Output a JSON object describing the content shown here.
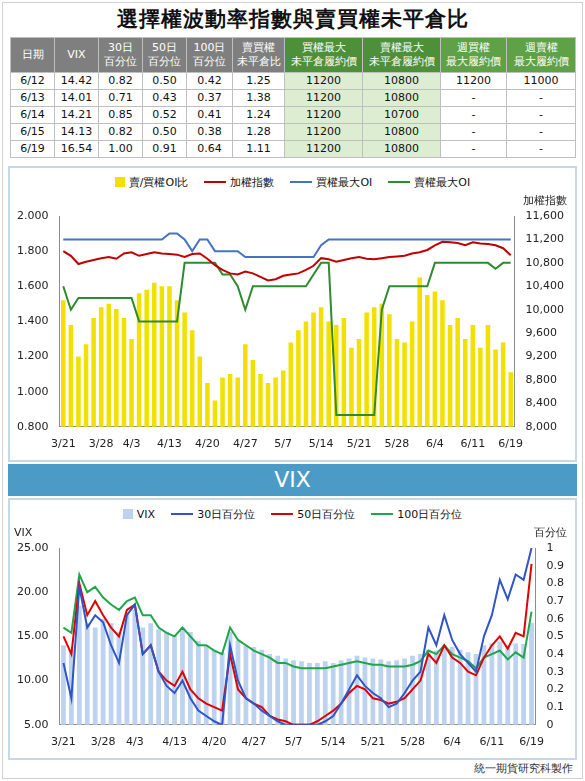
{
  "title": "選擇權波動率指數與賣買權未平倉比",
  "table": {
    "columns": [
      [
        "日期"
      ],
      [
        "VIX"
      ],
      [
        "30日",
        "百分位"
      ],
      [
        "50日",
        "百分位"
      ],
      [
        "100日",
        "百分位"
      ],
      [
        "賣買權",
        "未平倉比"
      ],
      [
        "買權最大",
        "未平倉履約價"
      ],
      [
        "賣權最大",
        "未平倉履約價"
      ],
      [
        "週買權",
        "最大履約價"
      ],
      [
        "週賣權",
        "最大履約價"
      ]
    ],
    "rows": [
      [
        "6/12",
        "14.42",
        "0.82",
        "0.50",
        "0.42",
        "1.25",
        "11200",
        "10800",
        "11200",
        "11000"
      ],
      [
        "6/13",
        "14.01",
        "0.71",
        "0.43",
        "0.37",
        "1.38",
        "11200",
        "10800",
        "-",
        "-"
      ],
      [
        "6/14",
        "14.21",
        "0.85",
        "0.52",
        "0.41",
        "1.24",
        "11200",
        "10700",
        "-",
        "-"
      ],
      [
        "6/15",
        "14.13",
        "0.82",
        "0.50",
        "0.38",
        "1.28",
        "11200",
        "10800",
        "-",
        "-"
      ],
      [
        "6/19",
        "16.54",
        "1.00",
        "0.91",
        "0.64",
        "1.11",
        "11200",
        "10800",
        "-",
        "-"
      ]
    ]
  },
  "chart_data": [
    {
      "type": "bar",
      "categories": [
        "3/21",
        null,
        null,
        null,
        null,
        "3/28",
        null,
        null,
        null,
        "4/3",
        null,
        null,
        null,
        null,
        "4/13",
        null,
        null,
        null,
        null,
        "4/20",
        null,
        null,
        null,
        null,
        "4/27",
        null,
        null,
        null,
        null,
        "5/7",
        null,
        null,
        null,
        null,
        "5/14",
        null,
        null,
        null,
        null,
        "5/21",
        null,
        null,
        null,
        null,
        "5/28",
        null,
        null,
        null,
        null,
        "6/4",
        null,
        null,
        null,
        null,
        "6/11",
        null,
        null,
        null,
        null,
        "6/19"
      ],
      "series": [
        {
          "name": "賣/買權OI比",
          "type": "bar",
          "color": "#f2e000",
          "values": [
            1.52,
            1.38,
            1.2,
            1.27,
            1.42,
            1.48,
            1.5,
            1.47,
            1.42,
            1.3,
            1.56,
            1.58,
            1.62,
            1.6,
            1.6,
            1.52,
            1.45,
            1.35,
            1.2,
            1.05,
            0.95,
            1.08,
            1.1,
            1.08,
            1.27,
            1.18,
            1.1,
            1.05,
            1.08,
            1.12,
            1.28,
            1.35,
            1.4,
            1.45,
            1.48,
            1.4,
            1.38,
            1.42,
            1.25,
            1.3,
            1.45,
            1.48,
            1.5,
            1.44,
            1.3,
            1.28,
            1.4,
            1.65,
            1.55,
            1.57,
            1.52,
            1.38,
            1.42,
            1.3,
            1.38,
            1.25,
            1.38,
            1.24,
            1.28,
            1.11
          ]
        },
        {
          "name": "加權指數",
          "type": "line",
          "axis": "y2",
          "color": "#c00000",
          "marker": "none",
          "line_style": "solid",
          "values": [
            11000,
            10920,
            10780,
            10820,
            10850,
            10880,
            10900,
            10870,
            10960,
            10980,
            10920,
            10950,
            10980,
            10960,
            10950,
            10940,
            10900,
            10950,
            10960,
            10870,
            10760,
            10680,
            10620,
            10600,
            10650,
            10620,
            10560,
            10500,
            10520,
            10580,
            10600,
            10620,
            10680,
            10750,
            10880,
            10860,
            10820,
            10850,
            10880,
            10900,
            10870,
            10860,
            10880,
            10900,
            10910,
            10920,
            10960,
            10980,
            11020,
            11100,
            11160,
            11150,
            11140,
            11100,
            11150,
            11130,
            11120,
            11100,
            11050,
            10930
          ]
        },
        {
          "name": "買權最大OI",
          "type": "line",
          "axis": "y2",
          "color": "#4472c4",
          "marker": "none",
          "line_style": "solid",
          "values": [
            11200,
            11200,
            11200,
            11200,
            11200,
            11200,
            11200,
            11200,
            11200,
            11200,
            11200,
            11200,
            11200,
            11200,
            11300,
            11300,
            11200,
            11000,
            11200,
            11200,
            11000,
            11000,
            11000,
            11000,
            10900,
            10900,
            10900,
            10900,
            10900,
            10900,
            10900,
            10900,
            10900,
            10900,
            11100,
            11200,
            11200,
            11200,
            11200,
            11200,
            11200,
            11200,
            11200,
            11200,
            11200,
            11200,
            11200,
            11200,
            11200,
            11200,
            11200,
            11200,
            11200,
            11200,
            11200,
            11200,
            11200,
            11200,
            11200,
            11200
          ]
        },
        {
          "name": "賣權最大OI",
          "type": "line",
          "axis": "y2",
          "color": "#2e8b2e",
          "marker": "none",
          "line_style": "solid",
          "values": [
            10400,
            10000,
            10200,
            10200,
            10200,
            10200,
            10200,
            10200,
            10200,
            10200,
            9800,
            9800,
            9800,
            9800,
            9800,
            9800,
            10800,
            10800,
            10800,
            10800,
            10800,
            10600,
            10600,
            10400,
            10000,
            10400,
            10400,
            10400,
            10400,
            10400,
            10400,
            10400,
            10400,
            10600,
            10800,
            10800,
            8200,
            8200,
            8200,
            8200,
            8200,
            8200,
            10000,
            10400,
            10400,
            10400,
            10400,
            10400,
            10400,
            10800,
            10800,
            10800,
            10800,
            10800,
            10800,
            10800,
            10800,
            10700,
            10800,
            10800
          ]
        }
      ],
      "ylim": [
        0.8,
        2.0
      ],
      "yticks": [
        {
          "value": 0.8,
          "label": "0.800"
        },
        {
          "value": 1.0,
          "label": "1.000"
        },
        {
          "value": 1.2,
          "label": "1.200"
        },
        {
          "value": 1.4,
          "label": "1.400"
        },
        {
          "value": 1.6,
          "label": "1.600"
        },
        {
          "value": 1.8,
          "label": "1.800"
        },
        {
          "value": 2.0,
          "label": "2.000"
        }
      ],
      "y2label": "加權指數",
      "y2lim": [
        8000,
        11600
      ],
      "y2ticks": [
        {
          "value": 8000,
          "label": "8,000"
        },
        {
          "value": 8400,
          "label": "8,400"
        },
        {
          "value": 8800,
          "label": "8,800"
        },
        {
          "value": 9200,
          "label": "9,200"
        },
        {
          "value": 9600,
          "label": "9,600"
        },
        {
          "value": 10000,
          "label": "10,000"
        },
        {
          "value": 10400,
          "label": "10,400"
        },
        {
          "value": 10800,
          "label": "10,800"
        },
        {
          "value": 11200,
          "label": "11,200"
        },
        {
          "value": 11600,
          "label": "11,600"
        }
      ],
      "legend": "top",
      "grid": false
    },
    {
      "type": "bar",
      "categories": [
        "3/21",
        null,
        null,
        null,
        null,
        "3/28",
        null,
        null,
        null,
        "4/3",
        null,
        null,
        null,
        null,
        "4/13",
        null,
        null,
        null,
        null,
        "4/20",
        null,
        null,
        null,
        null,
        "4/27",
        null,
        null,
        null,
        null,
        "5/7",
        null,
        null,
        null,
        null,
        "5/14",
        null,
        null,
        null,
        null,
        "5/21",
        null,
        null,
        null,
        null,
        "5/28",
        null,
        null,
        null,
        null,
        "6/4",
        null,
        null,
        null,
        null,
        "6/11",
        null,
        null,
        null,
        null,
        "6/19"
      ],
      "series": [
        {
          "name": "VIX",
          "type": "bar",
          "color": "#bcd2ee",
          "values": [
            14.0,
            13.5,
            18.5,
            16.5,
            16.0,
            17.0,
            16.5,
            15.5,
            17.5,
            18.0,
            16.0,
            16.5,
            15.8,
            15.5,
            15.2,
            16.0,
            15.5,
            14.5,
            14.0,
            13.5,
            13.2,
            15.5,
            14.5,
            14.0,
            13.8,
            13.5,
            13.0,
            12.8,
            12.5,
            12.3,
            12.2,
            12.0,
            12.0,
            12.2,
            12.0,
            12.3,
            12.5,
            12.8,
            12.6,
            12.5,
            12.4,
            12.2,
            12.3,
            12.5,
            12.8,
            13.0,
            13.5,
            13.4,
            14.0,
            13.8,
            13.5,
            13.2,
            13.0,
            14.0,
            14.2,
            14.42,
            14.01,
            14.21,
            14.13,
            16.54
          ]
        },
        {
          "name": "30日百分位",
          "type": "line",
          "axis": "y2",
          "color": "#2f55c7",
          "marker": "none",
          "line_style": "solid",
          "values": [
            0.35,
            0.15,
            0.78,
            0.55,
            0.62,
            0.58,
            0.45,
            0.35,
            0.62,
            0.68,
            0.4,
            0.45,
            0.3,
            0.22,
            0.18,
            0.25,
            0.15,
            0.08,
            0.05,
            0.02,
            0.0,
            0.45,
            0.25,
            0.15,
            0.12,
            0.08,
            0.05,
            0.02,
            0.0,
            0.0,
            0.0,
            0.0,
            0.0,
            0.02,
            0.05,
            0.12,
            0.2,
            0.28,
            0.22,
            0.18,
            0.15,
            0.1,
            0.12,
            0.18,
            0.25,
            0.3,
            0.55,
            0.45,
            0.62,
            0.48,
            0.4,
            0.35,
            0.3,
            0.5,
            0.62,
            0.82,
            0.71,
            0.85,
            0.82,
            1.0
          ]
        },
        {
          "name": "50日百分位",
          "type": "line",
          "axis": "y2",
          "color": "#e00000",
          "marker": "none",
          "line_style": "solid",
          "values": [
            0.5,
            0.4,
            0.8,
            0.62,
            0.7,
            0.62,
            0.55,
            0.5,
            0.65,
            0.68,
            0.4,
            0.45,
            0.3,
            0.25,
            0.22,
            0.3,
            0.2,
            0.15,
            0.12,
            0.1,
            0.08,
            0.4,
            0.2,
            0.15,
            0.12,
            0.1,
            0.05,
            0.03,
            0.02,
            0.0,
            0.0,
            0.0,
            0.02,
            0.05,
            0.08,
            0.12,
            0.18,
            0.22,
            0.2,
            0.15,
            0.14,
            0.12,
            0.13,
            0.15,
            0.2,
            0.25,
            0.4,
            0.35,
            0.45,
            0.38,
            0.35,
            0.3,
            0.28,
            0.38,
            0.45,
            0.5,
            0.43,
            0.52,
            0.5,
            0.91
          ]
        },
        {
          "name": "100日百分位",
          "type": "line",
          "axis": "y2",
          "color": "#1fa64a",
          "marker": "none",
          "line_style": "solid",
          "values": [
            0.55,
            0.52,
            0.85,
            0.75,
            0.78,
            0.72,
            0.68,
            0.65,
            0.7,
            0.72,
            0.62,
            0.62,
            0.55,
            0.52,
            0.5,
            0.55,
            0.5,
            0.45,
            0.45,
            0.42,
            0.4,
            0.55,
            0.48,
            0.45,
            0.42,
            0.4,
            0.38,
            0.35,
            0.35,
            0.33,
            0.32,
            0.32,
            0.32,
            0.32,
            0.33,
            0.34,
            0.35,
            0.36,
            0.35,
            0.34,
            0.34,
            0.33,
            0.33,
            0.33,
            0.34,
            0.36,
            0.42,
            0.4,
            0.45,
            0.4,
            0.38,
            0.36,
            0.32,
            0.38,
            0.4,
            0.42,
            0.37,
            0.41,
            0.38,
            0.64
          ]
        }
      ],
      "ylabel": "VIX",
      "ylim": [
        5,
        25
      ],
      "yticks": [
        {
          "value": 5,
          "label": "5.00"
        },
        {
          "value": 10,
          "label": "10.00"
        },
        {
          "value": 15,
          "label": "15.00"
        },
        {
          "value": 20,
          "label": "20.00"
        },
        {
          "value": 25,
          "label": "25.00"
        }
      ],
      "y2label": "百分位",
      "y2lim": [
        0,
        1
      ],
      "y2ticks": [
        0,
        0.1,
        0.2,
        0.3,
        0.4,
        0.5,
        0.6,
        0.7,
        0.8,
        0.9,
        1
      ],
      "legend": "top",
      "grid": false
    }
  ],
  "banner": "VIX",
  "footer": "統一期貨研究科製作"
}
